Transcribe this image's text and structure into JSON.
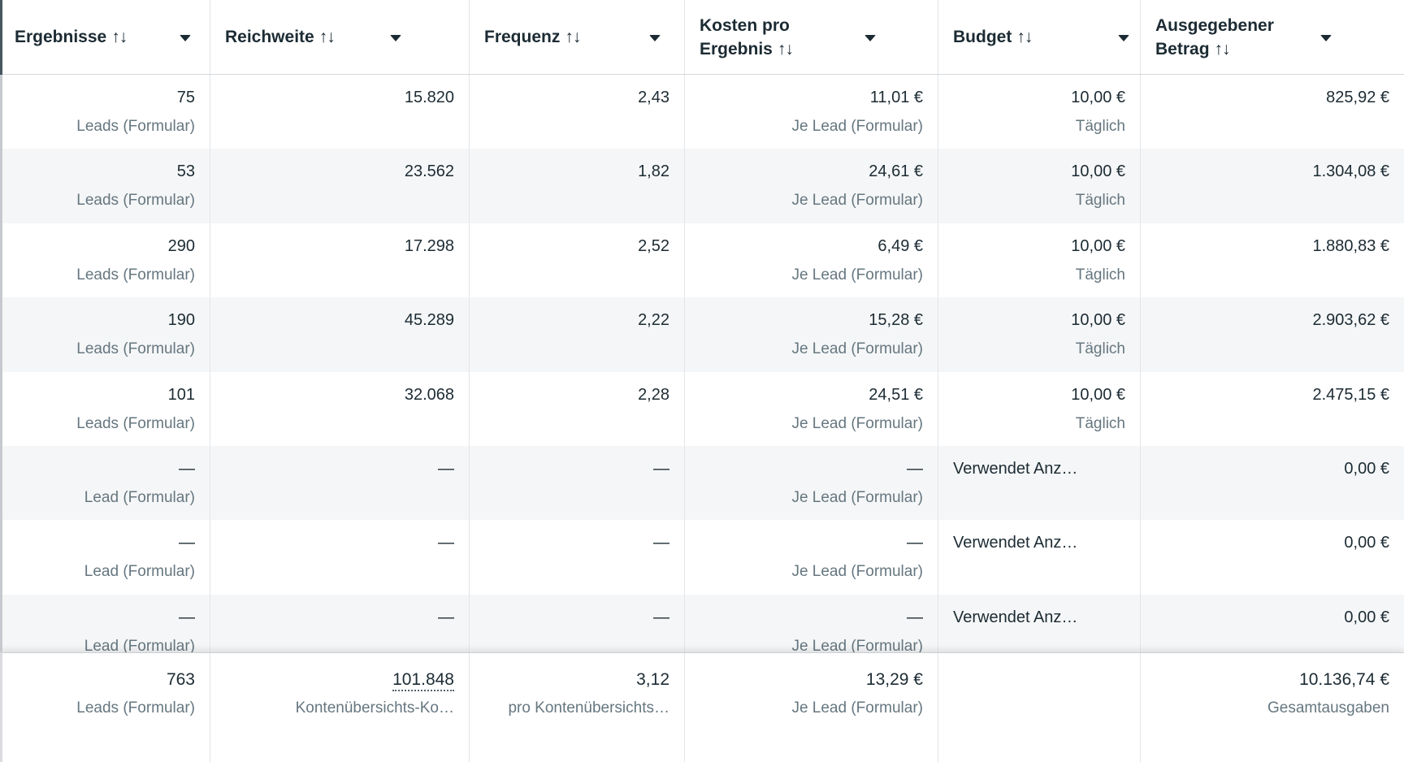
{
  "table": {
    "columns": [
      {
        "key": "results",
        "label_lines": [
          "Ergebnisse"
        ],
        "sort_icon": "↑↓"
      },
      {
        "key": "reach",
        "label_lines": [
          "Reichweite"
        ],
        "sort_icon": "↑↓"
      },
      {
        "key": "frequency",
        "label_lines": [
          "Frequenz"
        ],
        "sort_icon": "↑↓"
      },
      {
        "key": "cost-per-result",
        "label_lines": [
          "Kosten pro",
          "Ergebnis"
        ],
        "sort_icon": "↑↓"
      },
      {
        "key": "budget",
        "label_lines": [
          "Budget"
        ],
        "sort_icon": "↑↓"
      },
      {
        "key": "amount-spent",
        "label_lines": [
          "Ausgegebener",
          "Betrag"
        ],
        "sort_icon": "↑↓"
      }
    ],
    "rows": [
      {
        "cells": [
          {
            "value": "75",
            "sub": "Leads (Formular)"
          },
          {
            "value": "15.820"
          },
          {
            "value": "2,43"
          },
          {
            "value": "11,01 €",
            "sub": "Je Lead (Formular)"
          },
          {
            "value": "10,00 €",
            "sub": "Täglich"
          },
          {
            "value": "825,92 €"
          }
        ]
      },
      {
        "cells": [
          {
            "value": "53",
            "sub": "Leads (Formular)"
          },
          {
            "value": "23.562"
          },
          {
            "value": "1,82"
          },
          {
            "value": "24,61 €",
            "sub": "Je Lead (Formular)"
          },
          {
            "value": "10,00 €",
            "sub": "Täglich"
          },
          {
            "value": "1.304,08 €"
          }
        ]
      },
      {
        "cells": [
          {
            "value": "290",
            "sub": "Leads (Formular)"
          },
          {
            "value": "17.298"
          },
          {
            "value": "2,52"
          },
          {
            "value": "6,49 €",
            "sub": "Je Lead (Formular)"
          },
          {
            "value": "10,00 €",
            "sub": "Täglich"
          },
          {
            "value": "1.880,83 €"
          }
        ]
      },
      {
        "cells": [
          {
            "value": "190",
            "sub": "Leads (Formular)"
          },
          {
            "value": "45.289"
          },
          {
            "value": "2,22"
          },
          {
            "value": "15,28 €",
            "sub": "Je Lead (Formular)"
          },
          {
            "value": "10,00 €",
            "sub": "Täglich"
          },
          {
            "value": "2.903,62 €"
          }
        ]
      },
      {
        "cells": [
          {
            "value": "101",
            "sub": "Leads (Formular)"
          },
          {
            "value": "32.068"
          },
          {
            "value": "2,28"
          },
          {
            "value": "24,51 €",
            "sub": "Je Lead (Formular)"
          },
          {
            "value": "10,00 €",
            "sub": "Täglich"
          },
          {
            "value": "2.475,15 €"
          }
        ]
      },
      {
        "cells": [
          {
            "value": "—",
            "sub": "Lead (Formular)"
          },
          {
            "value": "—"
          },
          {
            "value": "—"
          },
          {
            "value": "—",
            "sub": "Je Lead (Formular)"
          },
          {
            "value": "Verwendet Anz…",
            "align": "left"
          },
          {
            "value": "0,00 €"
          }
        ]
      },
      {
        "cells": [
          {
            "value": "—",
            "sub": "Lead (Formular)"
          },
          {
            "value": "—"
          },
          {
            "value": "—"
          },
          {
            "value": "—",
            "sub": "Je Lead (Formular)"
          },
          {
            "value": "Verwendet Anz…",
            "align": "left"
          },
          {
            "value": "0,00 €"
          }
        ]
      },
      {
        "cells": [
          {
            "value": "—",
            "sub": "Lead (Formular)"
          },
          {
            "value": "—"
          },
          {
            "value": "—"
          },
          {
            "value": "—",
            "sub": "Je Lead (Formular)"
          },
          {
            "value": "Verwendet Anz…",
            "align": "left"
          },
          {
            "value": "0,00 €"
          }
        ]
      }
    ],
    "summary": {
      "cells": [
        {
          "value": "763",
          "sub": "Leads (Formular)"
        },
        {
          "value": "101.848",
          "sub": "Kontenübersichts-Ko…",
          "underline": true
        },
        {
          "value": "3,12",
          "sub": "pro Kontenübersichts…"
        },
        {
          "value": "13,29 €",
          "sub": "Je Lead (Formular)"
        },
        {
          "value": "",
          "sub": ""
        },
        {
          "value": "10.136,74 €",
          "sub": "Gesamtausgaben"
        }
      ]
    }
  },
  "colors": {
    "text_primary": "#1c2b33",
    "text_secondary": "#667780",
    "row_alt_background": "#f5f6f7",
    "grid_line": "#e3e5e8"
  }
}
